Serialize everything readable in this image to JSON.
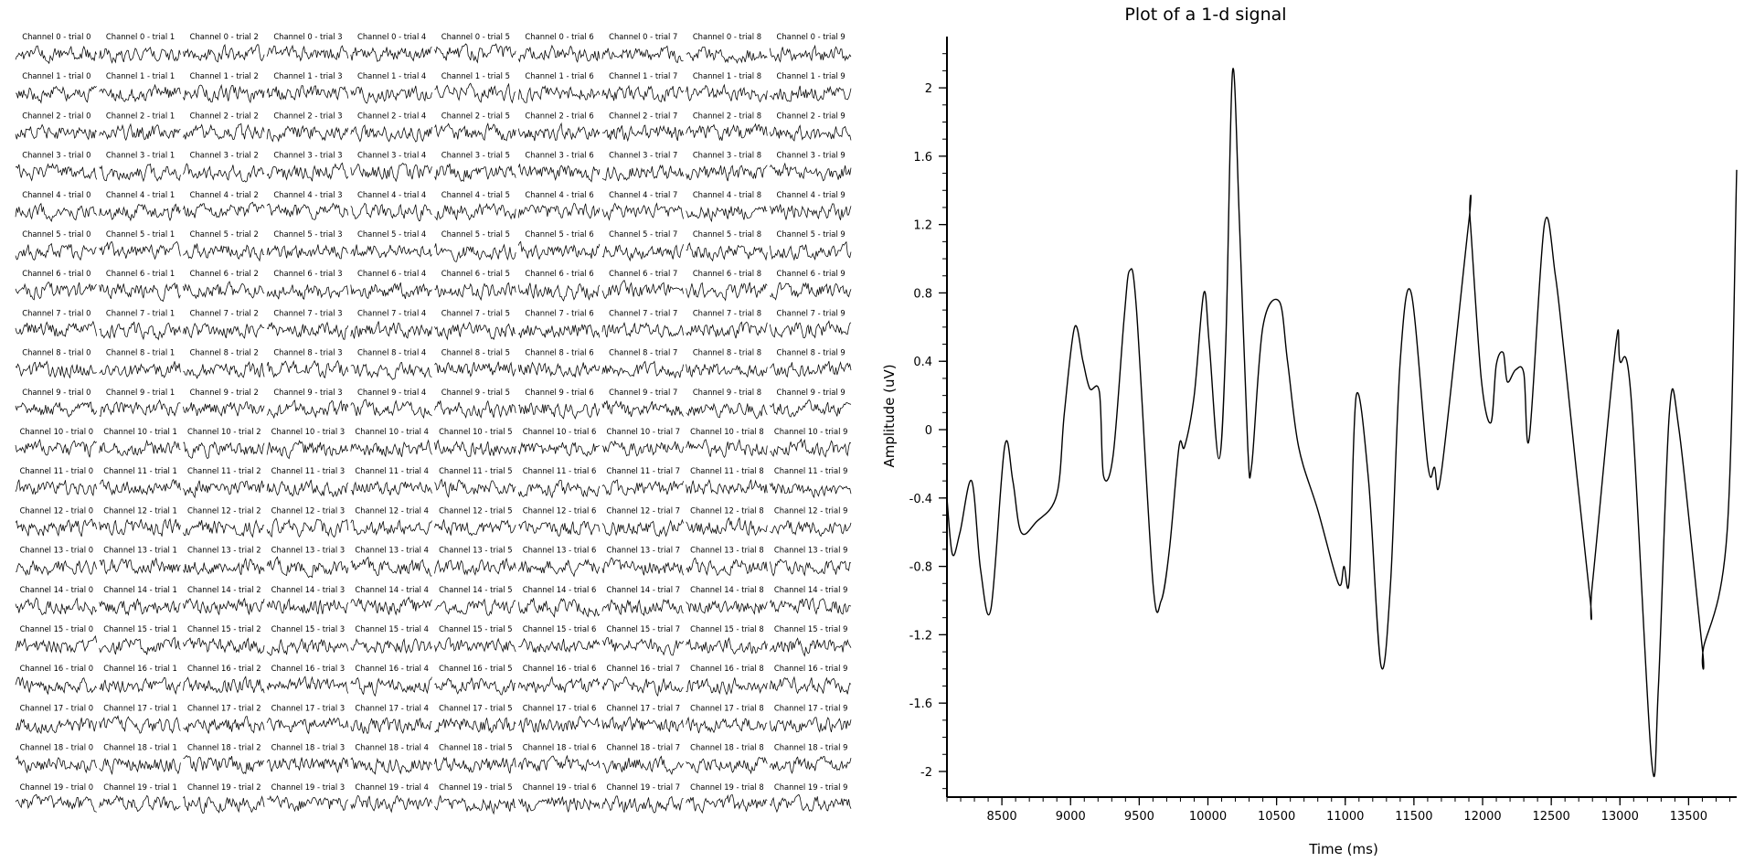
{
  "left_panel": {
    "channels": 20,
    "trials": 10,
    "label_prefix": "Channel",
    "label_separator": " - trial ",
    "line_color": "#000000",
    "background": "#ffffff"
  },
  "chart_data": {
    "type": "line",
    "title": "Plot of a 1-d signal",
    "xlabel": "Time (ms)",
    "ylabel": "Amplitude (uV)",
    "xlim": [
      8100,
      13850
    ],
    "ylim": [
      -2.15,
      2.3
    ],
    "x_ticks": [
      8500,
      9000,
      9500,
      10000,
      10500,
      11000,
      11500,
      12000,
      12500,
      13000,
      13500
    ],
    "y_ticks": [
      2,
      1.6,
      1.2,
      0.8,
      0.4,
      0,
      -0.4,
      -0.8,
      -1.2,
      -1.6,
      -2
    ],
    "y_tick_labels": [
      "2",
      "1.6",
      "1.2",
      "0.8",
      "0.4",
      "0",
      "-0.4",
      "-0.8",
      "-1.2",
      "-1.6",
      "-2"
    ],
    "line_color": "#000000",
    "grid": false,
    "series": [
      {
        "x": [
          8100,
          8140,
          8195,
          8280,
          8345,
          8420,
          8520,
          8580,
          8640,
          8750,
          8900,
          8955,
          9030,
          9090,
          9140,
          9210,
          9240,
          9310,
          9390,
          9430,
          9480,
          9600,
          9660,
          9720,
          9790,
          9830,
          9900,
          9970,
          10010,
          10080,
          10130,
          10180,
          10230,
          10290,
          10320,
          10400,
          10520,
          10580,
          10660,
          10800,
          10950,
          10990,
          11030,
          11080,
          11170,
          11260,
          11330,
          11400,
          11480,
          11600,
          11650,
          11700,
          11900,
          11910,
          11990,
          12060,
          12100,
          12150,
          12180,
          12240,
          12300,
          12340,
          12450,
          12530,
          12600,
          12780,
          12800,
          12970,
          13000,
          13080,
          13230,
          13280,
          13360,
          13430,
          13600,
          13610,
          13780,
          13850
        ],
        "y": [
          -0.4,
          -0.73,
          -0.6,
          -0.3,
          -0.82,
          -1.05,
          -0.1,
          -0.3,
          -0.6,
          -0.54,
          -0.38,
          0.1,
          0.6,
          0.4,
          0.24,
          0.22,
          -0.27,
          -0.15,
          0.65,
          0.93,
          0.7,
          -0.9,
          -1.0,
          -0.7,
          -0.1,
          -0.1,
          0.2,
          0.8,
          0.5,
          -0.17,
          0.5,
          2.1,
          1.2,
          -0.1,
          -0.2,
          0.6,
          0.75,
          0.4,
          -0.1,
          -0.47,
          -0.9,
          -0.8,
          -0.87,
          0.2,
          -0.3,
          -1.38,
          -0.9,
          0.4,
          0.8,
          -0.2,
          -0.22,
          -0.25,
          1.22,
          1.22,
          0.3,
          0.04,
          0.38,
          0.45,
          0.28,
          0.35,
          0.33,
          -0.05,
          1.2,
          0.9,
          0.4,
          -0.97,
          -0.9,
          0.5,
          0.4,
          0.2,
          -1.93,
          -1.5,
          0.1,
          0.0,
          -1.28,
          -1.27,
          -0.6,
          1.52
        ]
      }
    ]
  }
}
